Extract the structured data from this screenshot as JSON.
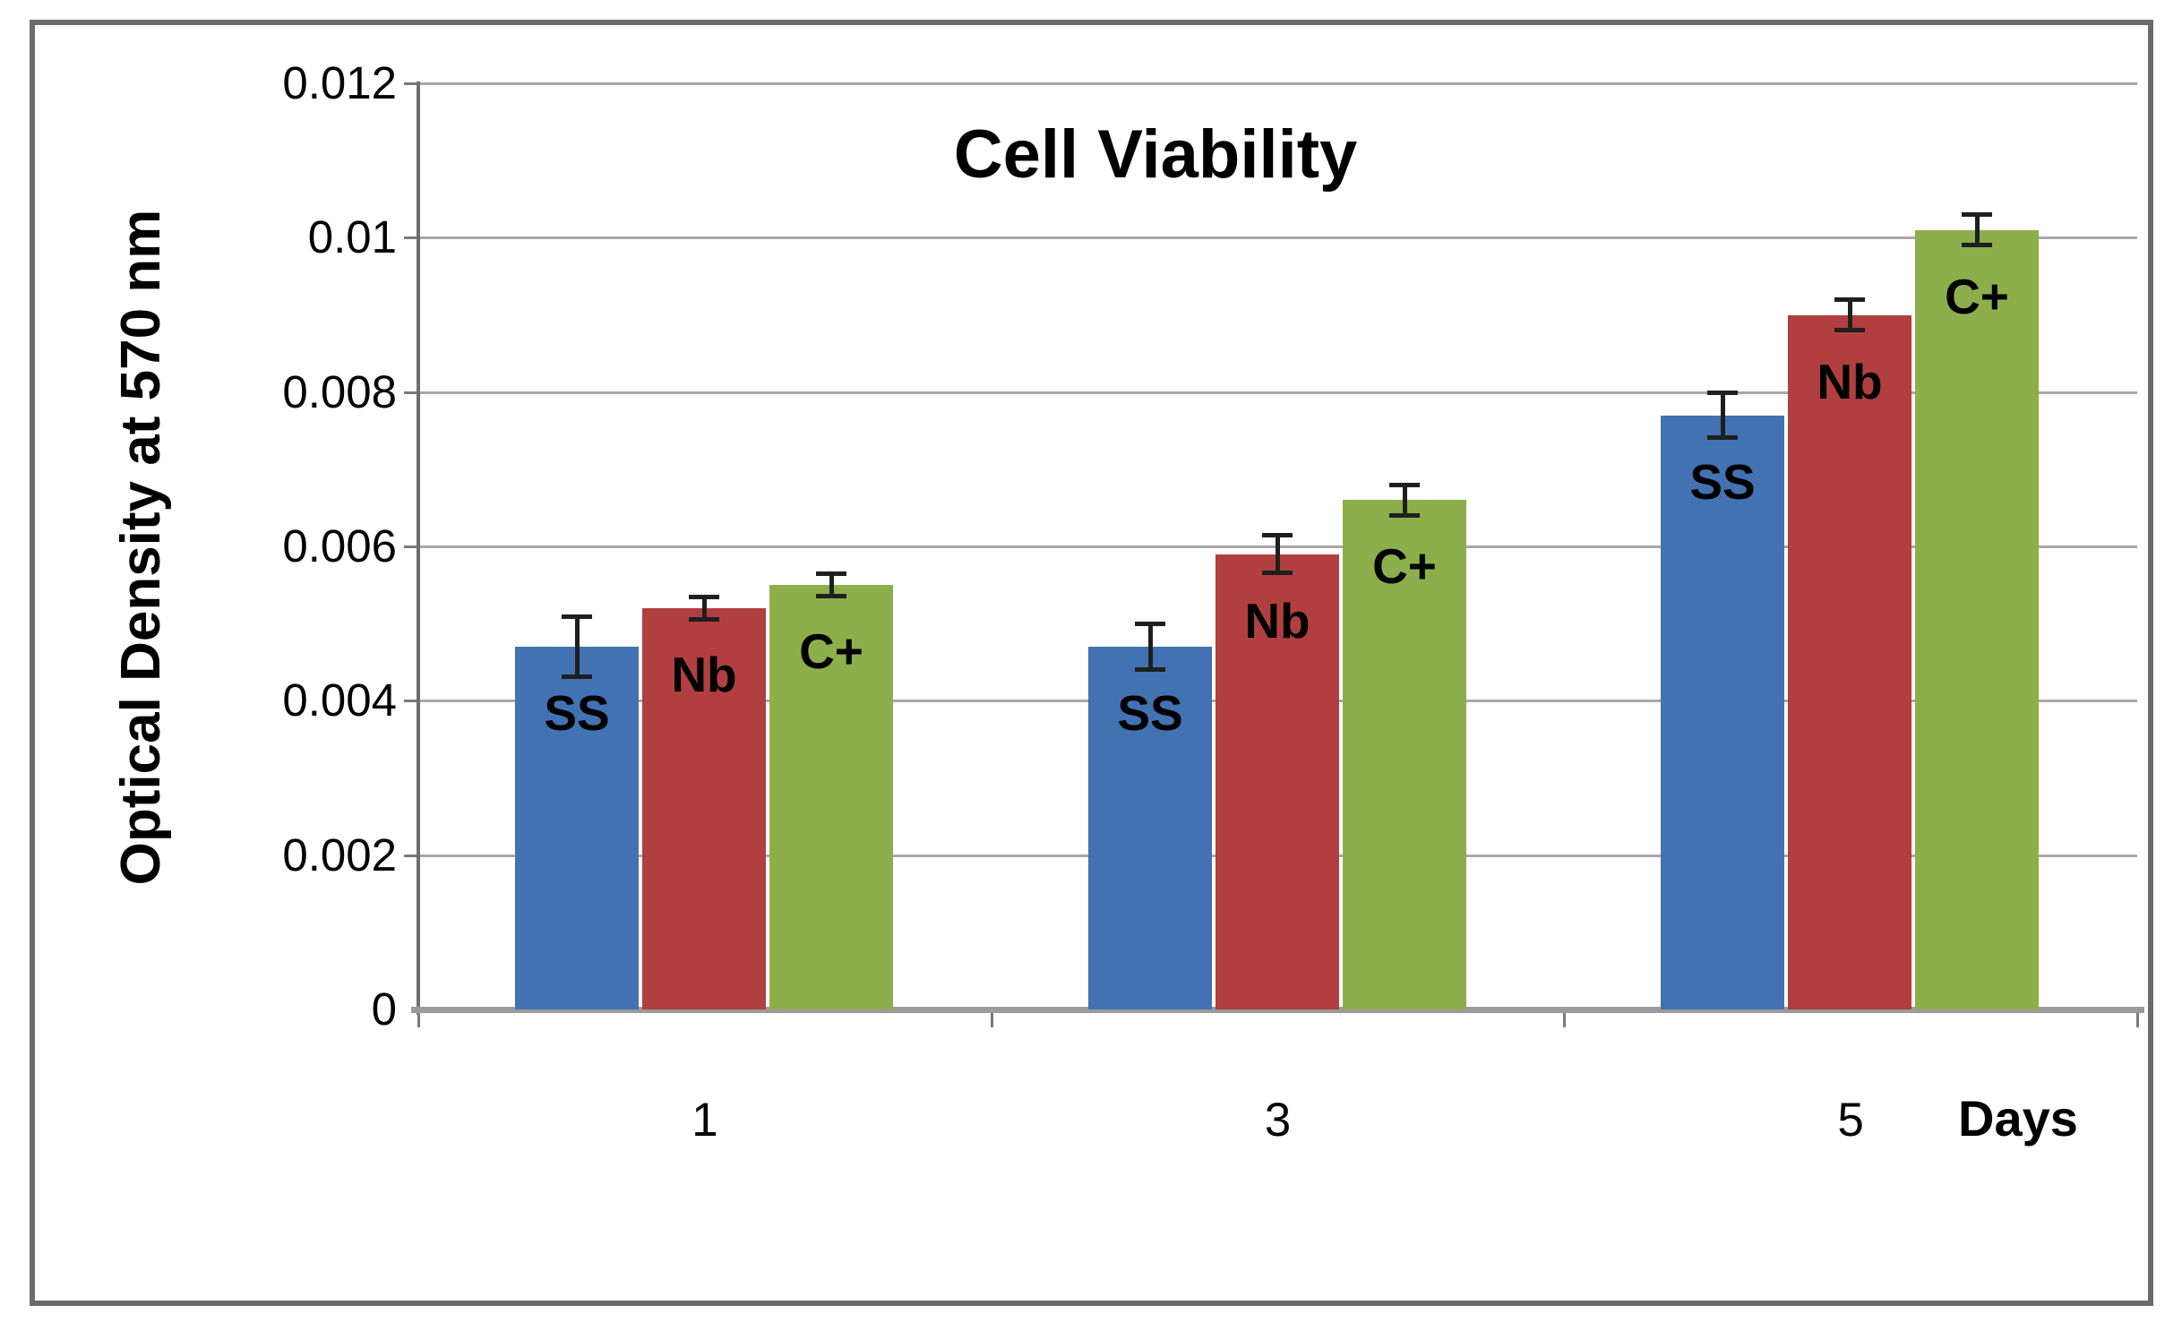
{
  "chart_data": {
    "type": "bar",
    "title": "Cell Viability",
    "ylabel": "Optical Density at 570 nm",
    "xlabel": "Days",
    "categories": [
      "1",
      "3",
      "5"
    ],
    "series": [
      {
        "name": "SS",
        "color": "#4272B2",
        "values": [
          0.0047,
          0.0047,
          0.0077
        ],
        "errors": [
          0.0004,
          0.0003,
          0.0003
        ]
      },
      {
        "name": "Nb",
        "color": "#B23F3F",
        "values": [
          0.0052,
          0.0059,
          0.009
        ],
        "errors": [
          0.00015,
          0.00025,
          0.0002
        ]
      },
      {
        "name": "C+",
        "color": "#8CAF4B",
        "values": [
          0.0055,
          0.0066,
          0.0101
        ],
        "errors": [
          0.00015,
          0.0002,
          0.0002
        ]
      }
    ],
    "ylim": [
      0,
      0.012
    ],
    "yticks": [
      {
        "label": "0.012",
        "value": 0.012
      },
      {
        "label": "0.01",
        "value": 0.01
      },
      {
        "label": "0.008",
        "value": 0.008
      },
      {
        "label": "0.006",
        "value": 0.006
      },
      {
        "label": "0.004",
        "value": 0.004
      },
      {
        "label": "0.002",
        "value": 0.002
      },
      {
        "label": "0",
        "value": 0.0
      }
    ],
    "grid": true,
    "legend": "none",
    "bar_labels": "series name shown inside top of each bar",
    "error_bars": "symmetric, centered on bar top",
    "colors": {
      "gridline": "#a8a8a8",
      "y_axis_line": "#6e6e6e",
      "x_axis_line": "#9b9b9b",
      "error_bar": "#1f1f1f",
      "text": "#000000",
      "frame_border": "#6b6b6b"
    }
  }
}
